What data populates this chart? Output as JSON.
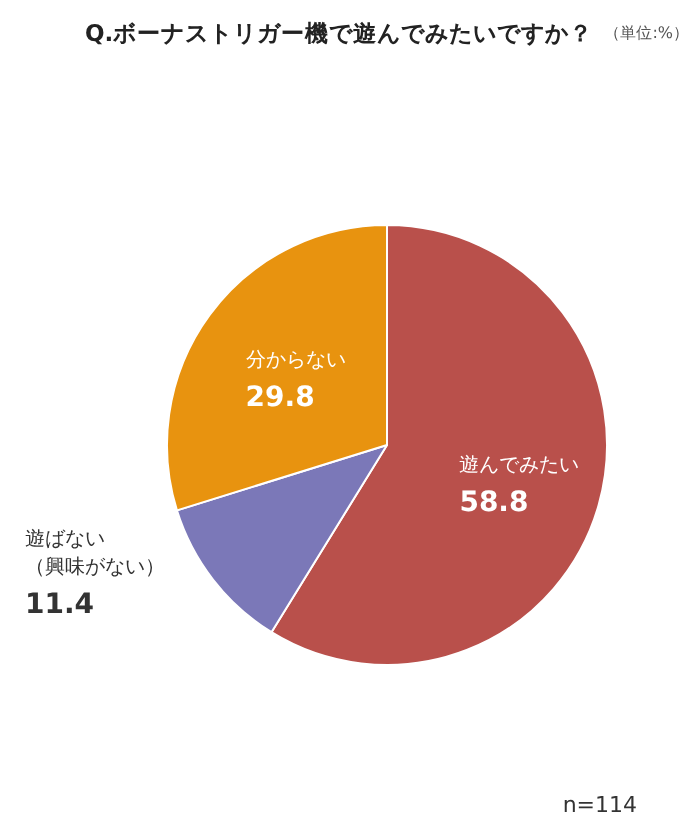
{
  "chart_data": {
    "type": "pie",
    "title": "Q.ボーナストリガー機で遊んでみたいですか？",
    "subtitle": "（単位:%）",
    "categories": [
      "遊んでみたい",
      "遊ばない（興味がない）",
      "分からない"
    ],
    "values": [
      58.8,
      11.4,
      29.8
    ],
    "colors": [
      "#b9504b",
      "#7b78b8",
      "#e8930f"
    ],
    "data_labels": true,
    "annotations": [
      "n=114"
    ]
  }
}
